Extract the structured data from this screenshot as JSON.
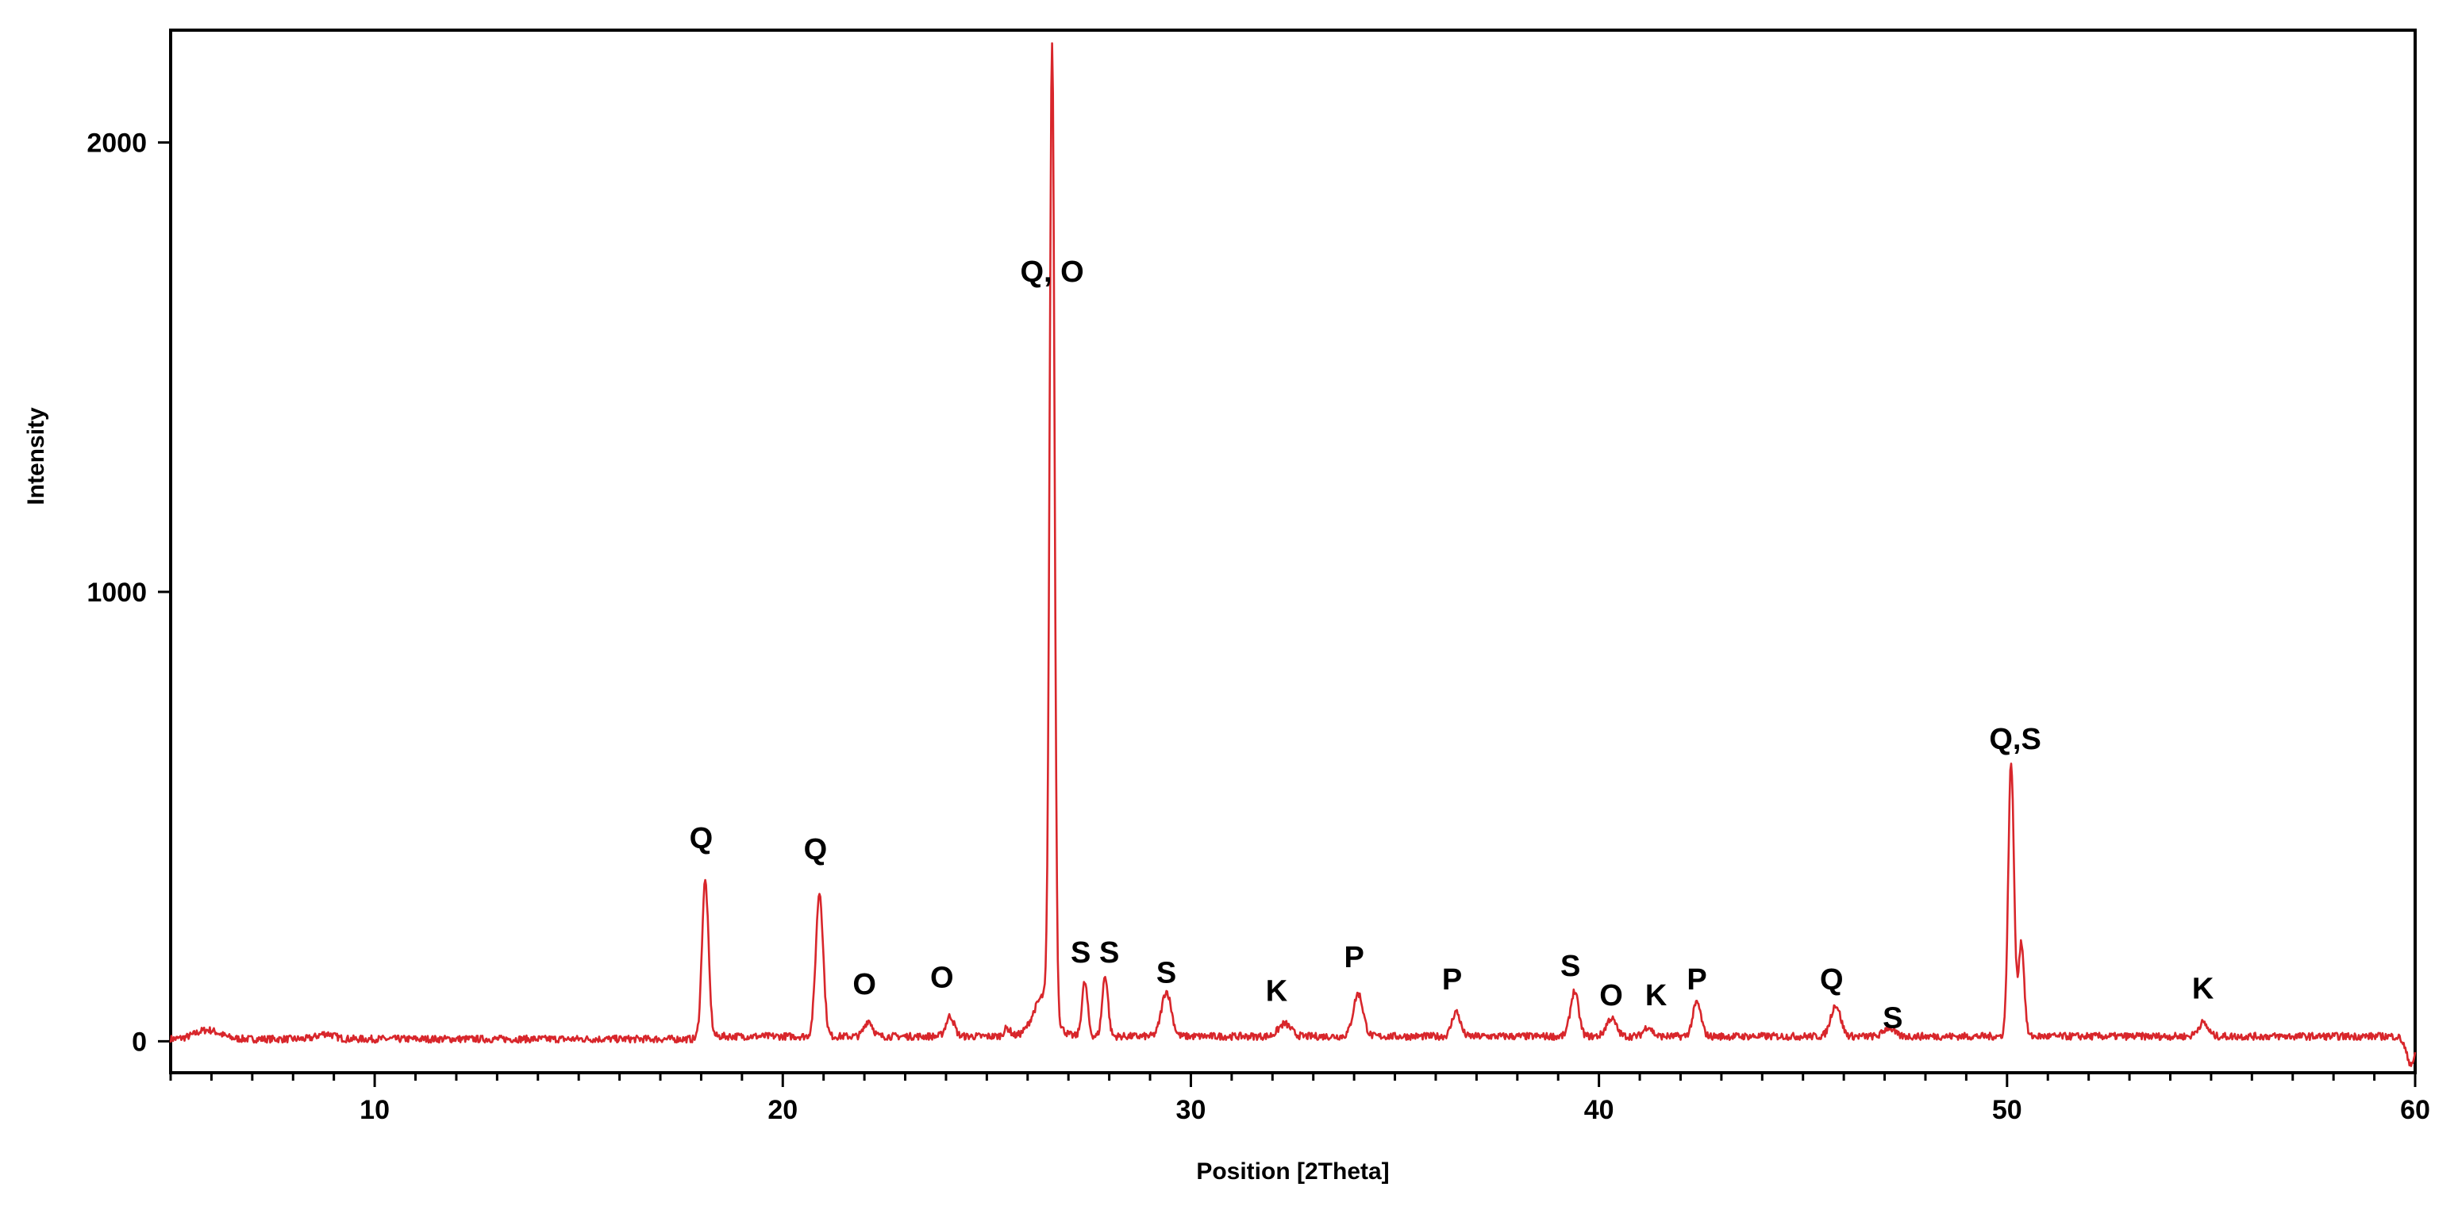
{
  "chart_data": {
    "type": "line",
    "title": "",
    "xlabel": "Position [2Theta]",
    "ylabel": "Intensity",
    "xlim": [
      5,
      60
    ],
    "ylim": [
      -70,
      2250
    ],
    "x_ticks": [
      10,
      20,
      30,
      40,
      50,
      60
    ],
    "x_minor_step": 1,
    "y_ticks": [
      0,
      1000,
      2000
    ],
    "grid": false,
    "legend": "none",
    "colors": {
      "line": "#d8262b",
      "axes": "#000000"
    },
    "baseline": 5,
    "background_start": 18,
    "series": [
      {
        "peaks": [
          {
            "x": 5.9,
            "y": 20,
            "w": 0.3
          },
          {
            "x": 8.8,
            "y": 12,
            "w": 0.2
          },
          {
            "x": 18.1,
            "y": 345,
            "w": 0.08
          },
          {
            "x": 20.9,
            "y": 320,
            "w": 0.09
          },
          {
            "x": 22.1,
            "y": 35,
            "w": 0.1
          },
          {
            "x": 24.1,
            "y": 45,
            "w": 0.1
          },
          {
            "x": 25.5,
            "y": 18,
            "w": 0.08
          },
          {
            "x": 26.6,
            "y": 2150,
            "w": 0.06
          },
          {
            "x": 26.4,
            "y": 90,
            "w": 0.25
          },
          {
            "x": 27.4,
            "y": 120,
            "w": 0.07
          },
          {
            "x": 27.9,
            "y": 135,
            "w": 0.07
          },
          {
            "x": 29.4,
            "y": 100,
            "w": 0.12
          },
          {
            "x": 32.3,
            "y": 28,
            "w": 0.15
          },
          {
            "x": 34.1,
            "y": 95,
            "w": 0.12
          },
          {
            "x": 36.5,
            "y": 55,
            "w": 0.1
          },
          {
            "x": 39.4,
            "y": 100,
            "w": 0.1
          },
          {
            "x": 40.3,
            "y": 40,
            "w": 0.12
          },
          {
            "x": 41.2,
            "y": 22,
            "w": 0.1
          },
          {
            "x": 42.4,
            "y": 75,
            "w": 0.1
          },
          {
            "x": 45.8,
            "y": 70,
            "w": 0.12
          },
          {
            "x": 47.1,
            "y": 20,
            "w": 0.12
          },
          {
            "x": 50.1,
            "y": 610,
            "w": 0.07
          },
          {
            "x": 50.35,
            "y": 210,
            "w": 0.07
          },
          {
            "x": 54.8,
            "y": 30,
            "w": 0.12
          },
          {
            "x": 59.9,
            "y": -60,
            "w": 0.12
          }
        ]
      }
    ],
    "annotations": [
      {
        "text": "Q",
        "x": 18.0,
        "y": 430
      },
      {
        "text": "Q",
        "x": 20.8,
        "y": 405
      },
      {
        "text": "O",
        "x": 22.0,
        "y": 105
      },
      {
        "text": "O",
        "x": 23.9,
        "y": 120
      },
      {
        "text": "Q, O",
        "x": 26.6,
        "y": 1690
      },
      {
        "text": "S",
        "x": 27.3,
        "y": 175
      },
      {
        "text": "S",
        "x": 28.0,
        "y": 175
      },
      {
        "text": "S",
        "x": 29.4,
        "y": 130
      },
      {
        "text": "K",
        "x": 32.1,
        "y": 90
      },
      {
        "text": "P",
        "x": 34.0,
        "y": 165
      },
      {
        "text": "P",
        "x": 36.4,
        "y": 115
      },
      {
        "text": "S",
        "x": 39.3,
        "y": 145
      },
      {
        "text": "O",
        "x": 40.3,
        "y": 80
      },
      {
        "text": "K",
        "x": 41.4,
        "y": 80
      },
      {
        "text": "P",
        "x": 42.4,
        "y": 115
      },
      {
        "text": "Q",
        "x": 45.7,
        "y": 115
      },
      {
        "text": "S",
        "x": 47.2,
        "y": 30
      },
      {
        "text": "Q,S",
        "x": 50.2,
        "y": 650
      },
      {
        "text": "K",
        "x": 54.8,
        "y": 95
      }
    ]
  }
}
